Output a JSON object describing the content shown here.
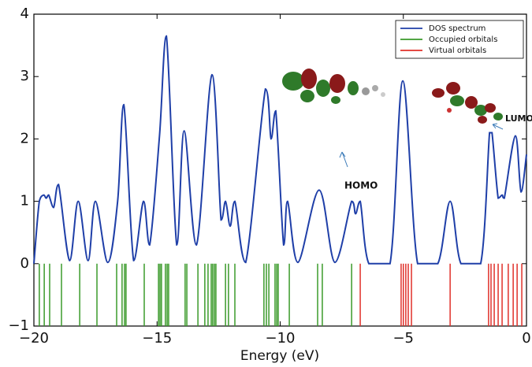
{
  "chart_data": {
    "type": "dos",
    "x_label": "Energy (eV)",
    "xlim": [
      -20,
      0
    ],
    "ylim": [
      -1,
      4
    ],
    "xticks": [
      {
        "value": -20,
        "label": "−20"
      },
      {
        "value": -15,
        "label": "−15"
      },
      {
        "value": -10,
        "label": "−10"
      },
      {
        "value": -5,
        "label": "−5"
      },
      0
    ],
    "yticks": [
      {
        "value": -1,
        "label": "−1"
      },
      0,
      1,
      2,
      3,
      4
    ],
    "legend": "upper right",
    "annotations": [
      "HOMO",
      "LUMO"
    ],
    "series": [
      {
        "name": "DOS spectrum",
        "color": "#1f3fa8",
        "kind": "line",
        "x": [
          -20,
          -19.78,
          -19.6,
          -19.5,
          -19.4,
          -19.2,
          -19.0,
          -18.55,
          -18.2,
          -17.8,
          -17.5,
          -17.0,
          -16.6,
          -16.35,
          -15.95,
          -15.55,
          -15.3,
          -14.9,
          -14.62,
          -14.2,
          -13.9,
          -13.4,
          -12.77,
          -12.4,
          -12.22,
          -12.03,
          -11.84,
          -11.4,
          -10.6,
          -10.37,
          -10.18,
          -9.86,
          -9.7,
          -9.28,
          -8.42,
          -7.78,
          -7.1,
          -6.94,
          -6.75,
          -6.4,
          -5.54,
          -5.02,
          -4.42,
          -3.6,
          -3.1,
          -2.66,
          -1.86,
          -1.5,
          -1.4,
          -1.15,
          -0.99,
          -0.9,
          -0.45,
          -0.22,
          0
        ],
        "values": [
          0,
          1.0,
          1.1,
          1.05,
          1.1,
          0.9,
          1.27,
          0.05,
          1.0,
          0.05,
          1.0,
          0.02,
          1.0,
          2.55,
          0.05,
          1.0,
          0.3,
          2.05,
          3.65,
          0.3,
          2.13,
          0.3,
          3.03,
          0.7,
          1.0,
          0.6,
          1.0,
          0.02,
          2.8,
          2.0,
          2.45,
          0.3,
          1.0,
          0.02,
          1.18,
          0.02,
          1.0,
          0.8,
          1.0,
          0,
          0,
          2.93,
          0,
          0,
          1.0,
          0,
          0,
          2.1,
          2.1,
          1.05,
          1.1,
          1.05,
          2.05,
          1.15,
          1.75
        ]
      },
      {
        "name": "Occupied orbitals",
        "color": "#3a9a2a",
        "kind": "levels",
        "x": [
          -19.78,
          -19.58,
          -19.36,
          -18.88,
          -18.14,
          -17.44,
          -16.64,
          -16.42,
          -16.32,
          -16.26,
          -15.52,
          -14.94,
          -14.88,
          -14.82,
          -14.66,
          -14.59,
          -14.53,
          -13.86,
          -13.79,
          -13.34,
          -13.06,
          -12.93,
          -12.8,
          -12.74,
          -12.67,
          -12.61,
          -12.22,
          -12.1,
          -11.84,
          -10.66,
          -10.56,
          -10.46,
          -10.21,
          -10.14,
          -10.08,
          -9.63,
          -8.48,
          -8.29,
          -7.1
        ]
      },
      {
        "name": "Virtual orbitals",
        "color": "#e0302a",
        "kind": "levels",
        "x": [
          -6.75,
          -5.09,
          -5.0,
          -4.9,
          -4.8,
          -4.67,
          -3.1,
          -1.54,
          -1.44,
          -1.31,
          -1.15,
          -0.99,
          -0.74,
          -0.54,
          -0.38,
          -0.19
        ]
      }
    ]
  }
}
